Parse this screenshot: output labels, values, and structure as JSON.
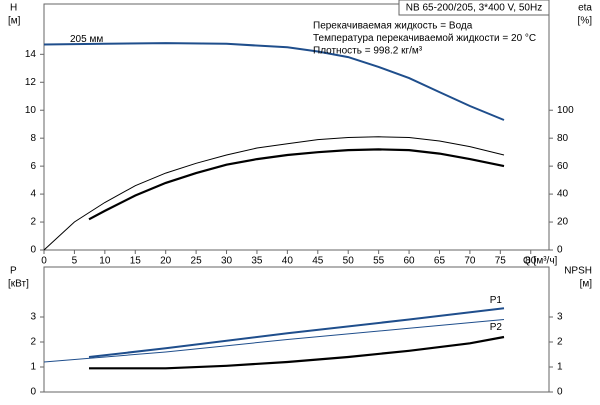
{
  "chart_data": [
    {
      "type": "line",
      "title": "NB 65-200/205, 3*400 V, 50Hz",
      "annotations": [
        "Перекачиваемая жидкость = Вода",
        "Температура перекачиваемой жидкости = 20 °C",
        "Плотность = 998.2 кг/м³"
      ],
      "ylabel": "H",
      "yunit": "[м]",
      "y2label": "eta",
      "y2unit": "[%]",
      "xlabel": "Q [м³/ч]",
      "xlim": [
        0,
        83
      ],
      "xticks": [
        0,
        5,
        10,
        15,
        20,
        25,
        30,
        35,
        40,
        45,
        50,
        55,
        60,
        65,
        70,
        75,
        80
      ],
      "ylim": [
        0,
        17.6
      ],
      "yticks": [
        0,
        2,
        4,
        6,
        8,
        10,
        12,
        14
      ],
      "y2lim": [
        0,
        176
      ],
      "y2ticks": [
        0,
        20,
        40,
        60,
        80,
        100
      ],
      "series": [
        {
          "name": "205 мм",
          "color": "#1f4e8c",
          "width": 2,
          "axis": "y",
          "x": [
            0,
            10,
            20,
            30,
            40,
            45,
            50,
            55,
            60,
            65,
            70,
            75.6
          ],
          "values": [
            14.7,
            14.75,
            14.8,
            14.75,
            14.5,
            14.2,
            13.8,
            13.1,
            12.3,
            11.3,
            10.3,
            9.3
          ]
        },
        {
          "color": "#000000",
          "width": 1,
          "axis": "y2",
          "x": [
            0,
            5,
            10,
            15,
            20,
            25,
            30,
            35,
            40,
            45,
            50,
            55,
            60,
            65,
            70,
            75.6
          ],
          "values": [
            0,
            20,
            34,
            46,
            55,
            62,
            68,
            73,
            76,
            79,
            80.5,
            81,
            80.5,
            78,
            74,
            68
          ]
        },
        {
          "color": "#000000",
          "width": 2.2,
          "axis": "y2",
          "x": [
            7.4,
            10,
            15,
            20,
            25,
            30,
            35,
            40,
            45,
            50,
            55,
            60,
            65,
            70,
            75.6
          ],
          "values": [
            22,
            28,
            39,
            48,
            55,
            61,
            65,
            68,
            70,
            71.5,
            72,
            71.5,
            69,
            65,
            60
          ]
        }
      ]
    },
    {
      "type": "line",
      "ylabel": "P",
      "yunit": "[кВт]",
      "y2label": "NPSH",
      "y2unit": "[м]",
      "xlim": [
        0,
        83
      ],
      "ylim": [
        0,
        5
      ],
      "yticks": [
        0,
        1,
        2,
        3
      ],
      "y2lim": [
        0,
        5
      ],
      "y2ticks": [
        0,
        1,
        2,
        3
      ],
      "series": [
        {
          "name": "P1",
          "color": "#1f4e8c",
          "width": 2,
          "axis": "y",
          "x": [
            7.4,
            20,
            40,
            60,
            75.6
          ],
          "values": [
            1.4,
            1.75,
            2.35,
            2.9,
            3.35
          ]
        },
        {
          "name": "P2",
          "color": "#1f4e8c",
          "width": 1,
          "axis": "y",
          "x": [
            0,
            20,
            40,
            60,
            75.6
          ],
          "values": [
            1.2,
            1.6,
            2.1,
            2.55,
            2.9
          ]
        },
        {
          "color": "#000000",
          "width": 2.2,
          "axis": "y2",
          "x": [
            7.4,
            20,
            30,
            40,
            50,
            60,
            70,
            75.6
          ],
          "values": [
            0.95,
            0.95,
            1.05,
            1.2,
            1.4,
            1.65,
            1.95,
            2.2
          ]
        }
      ]
    }
  ]
}
